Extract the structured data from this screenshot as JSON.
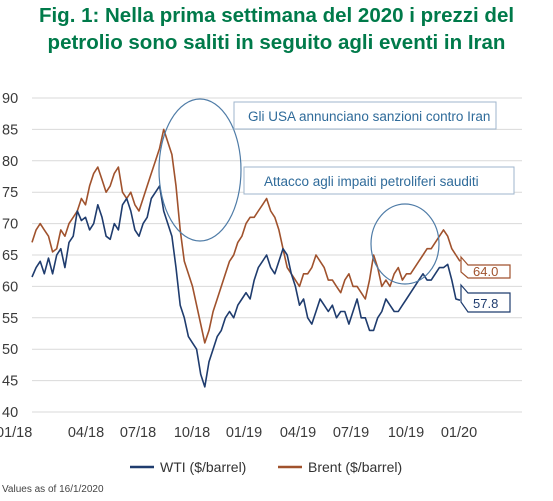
{
  "title_line1": "Fig. 1: Nella prima settimana del 2020 i prezzi del",
  "title_line2": "petrolio sono saliti in seguito agli eventi in Iran",
  "chart_data": {
    "type": "line",
    "ylim": [
      40,
      90
    ],
    "yticks": [
      "40",
      "45",
      "50",
      "55",
      "60",
      "65",
      "70",
      "75",
      "80",
      "85",
      "90"
    ],
    "xticks": [
      "01/18",
      "04/18",
      "07/18",
      "10/18",
      "01/19",
      "04/19",
      "07/19",
      "10/19",
      "01/20"
    ],
    "grid": true,
    "legend_position": "bottom",
    "series": [
      {
        "name": "WTI ($/barrel)",
        "color": "#1f3c6e",
        "end_value_label": "57.8",
        "values": [
          61.5,
          63,
          64,
          62,
          64.5,
          62,
          65,
          66,
          63,
          67,
          68,
          72,
          70.5,
          71,
          69,
          70,
          73,
          71,
          68,
          67.5,
          70,
          69,
          73,
          74,
          72,
          69,
          68,
          70,
          71,
          74,
          75,
          76,
          72,
          70,
          68,
          63,
          57,
          55,
          52,
          51,
          50,
          46,
          44,
          48,
          50,
          52,
          53,
          55,
          56,
          55,
          57,
          58,
          59,
          58,
          61,
          63,
          64,
          65,
          63,
          62,
          64,
          66,
          65,
          62,
          60,
          57,
          58,
          55,
          54,
          56,
          58,
          57,
          56,
          57,
          55,
          56,
          56,
          54,
          56,
          58,
          55,
          55,
          53,
          53,
          55,
          56,
          58,
          57,
          56,
          56,
          57,
          58,
          59,
          60,
          61,
          62,
          61,
          61,
          62,
          63,
          63,
          63.5,
          61,
          58,
          57.8
        ]
      },
      {
        "name": "Brent ($/barrel)",
        "color": "#a0522d",
        "end_value_label": "64.0",
        "values": [
          67,
          69,
          70,
          69,
          68,
          65.5,
          66,
          69,
          68,
          70,
          71,
          72,
          74,
          73,
          76,
          78,
          79,
          77,
          75,
          76,
          78,
          79,
          75,
          74,
          75,
          73,
          72,
          74,
          76,
          78,
          80,
          82,
          85,
          83,
          81,
          76,
          69,
          64,
          62,
          60,
          57,
          54,
          51,
          53,
          56,
          58,
          60,
          62,
          64,
          65,
          67,
          68,
          70,
          71,
          71,
          72,
          73,
          74,
          72,
          71,
          69,
          66,
          63,
          62,
          61,
          60,
          62,
          62,
          63,
          65,
          64,
          63,
          61,
          61,
          60,
          59,
          61,
          62,
          60,
          60,
          59,
          58,
          61,
          65,
          63,
          60,
          61,
          60,
          62,
          63,
          61,
          62,
          62,
          63,
          64,
          65,
          66,
          66,
          67,
          68,
          69,
          68,
          66,
          65,
          64
        ]
      }
    ],
    "annotations": [
      "Gli USA annunciano sanzioni contro Iran",
      "Attacco agli impaiti petroliferi sauditi"
    ],
    "note": "Values as of 16/1/2020"
  }
}
